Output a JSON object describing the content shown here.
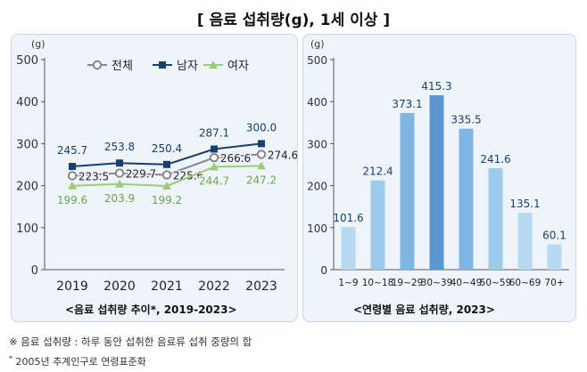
{
  "title": "[ 음료 섭취량(g), 1세 이상 ]",
  "chart_data": [
    {
      "type": "line",
      "caption": "<음료 섭취량 추이*, 2019-2023>",
      "unit": "(g)",
      "x": [
        "2019",
        "2020",
        "2021",
        "2022",
        "2023"
      ],
      "ylim": [
        0,
        500
      ],
      "yticks": [
        0,
        100,
        200,
        300,
        400,
        500
      ],
      "series": [
        {
          "name": "전체",
          "values": [
            223.5,
            229.7,
            225.6,
            266.6,
            274.6
          ],
          "color": "#888888",
          "marker": "circle-open"
        },
        {
          "name": "남자",
          "values": [
            245.7,
            253.8,
            250.4,
            287.1,
            300.0
          ],
          "color": "#17406e",
          "marker": "square",
          "label_color": "#17406e"
        },
        {
          "name": "여자",
          "values": [
            199.6,
            203.9,
            199.2,
            244.7,
            247.2
          ],
          "color": "#9ccc7a",
          "marker": "triangle",
          "label_color": "#6aa84f"
        }
      ],
      "value_labels": {
        "전체": [
          "223.5",
          "229.7",
          "225.6",
          "266.6",
          "274.6"
        ],
        "남자": [
          "245.7",
          "253.8",
          "250.4",
          "287.1",
          "300.0"
        ],
        "여자": [
          "199.6",
          "203.9",
          "199.2",
          "244.7",
          "247.2"
        ]
      },
      "legend_position": "top"
    },
    {
      "type": "bar",
      "caption": "<연령별 음료 섭취량, 2023>",
      "unit": "(g)",
      "categories": [
        "1~9",
        "10~18",
        "19~29",
        "30~39",
        "40~49",
        "50~59",
        "60~69",
        "70+"
      ],
      "values": [
        101.6,
        212.4,
        373.1,
        415.3,
        335.5,
        241.6,
        135.1,
        60.1
      ],
      "value_labels": [
        "101.6",
        "212.4",
        "373.1",
        "415.3",
        "335.5",
        "241.6",
        "135.1",
        "60.1"
      ],
      "ylim": [
        0,
        500
      ],
      "yticks": [
        0,
        100,
        200,
        300,
        400,
        500
      ],
      "bar_colors": [
        "#b7daf2",
        "#9ccbeb",
        "#7fb6e3",
        "#5a97d2",
        "#7fb6e3",
        "#9ccbeb",
        "#b7daf2",
        "#b7daf2"
      ]
    }
  ],
  "notes": {
    "note1": "※ 음료 섭취량 : 하루 동안 섭취한 음료류 섭취 중량의 합",
    "note2_mark": "*",
    "note2": " 2005년 추계인구로 연령표준화"
  }
}
